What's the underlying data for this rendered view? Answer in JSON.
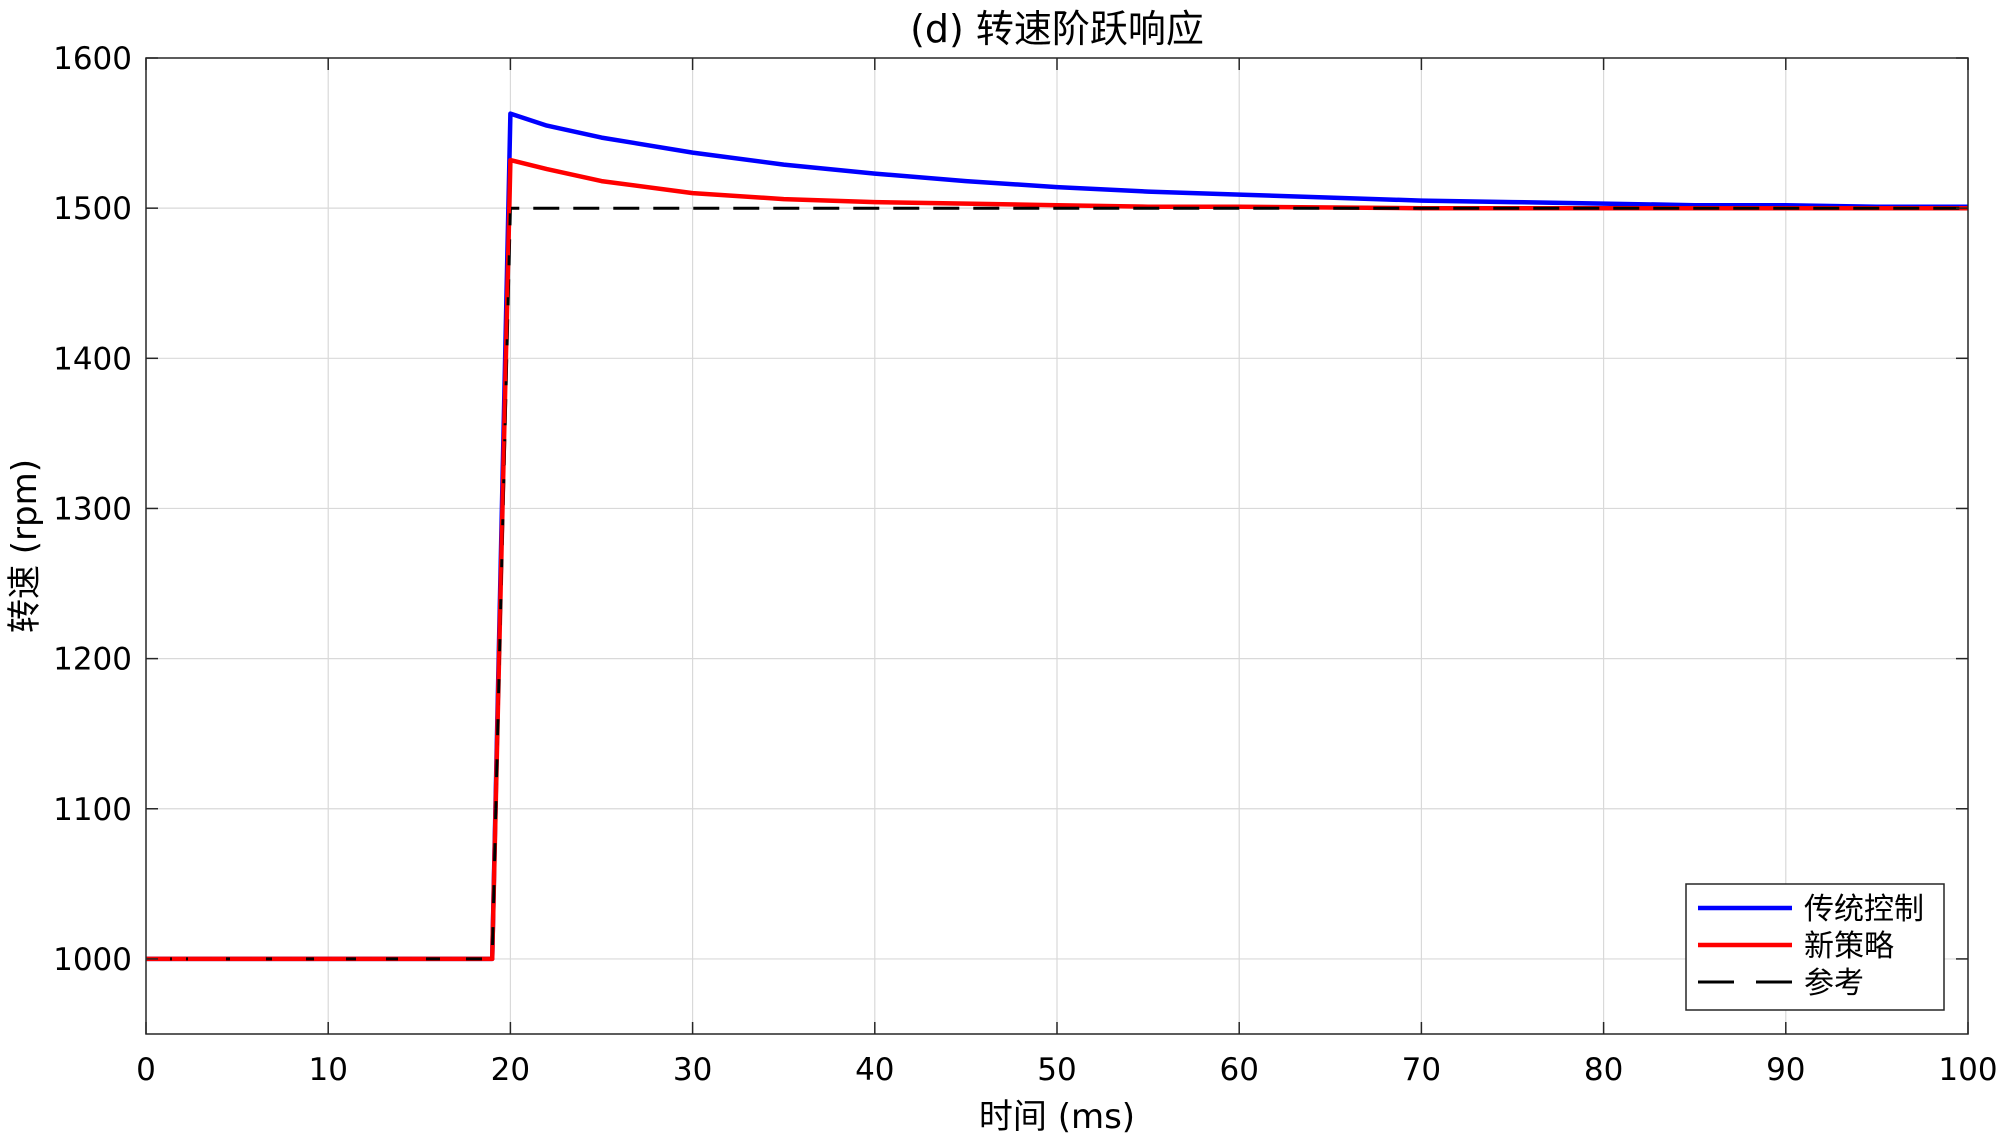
{
  "chart_data": {
    "type": "line",
    "title": "(d) 转速阶跃响应",
    "xlabel": "时间 (ms)",
    "ylabel": "转速 (rpm)",
    "xlim": [
      0,
      100
    ],
    "ylim": [
      950,
      1600
    ],
    "xticks": [
      0,
      10,
      20,
      30,
      40,
      50,
      60,
      70,
      80,
      90,
      100
    ],
    "yticks": [
      1000,
      1100,
      1200,
      1300,
      1400,
      1500,
      1600
    ],
    "grid": true,
    "legend_position": "bottom-right",
    "series": [
      {
        "name": "传统控制",
        "color": "#0000ff",
        "style": "solid",
        "x": [
          0,
          19,
          20,
          22,
          25,
          30,
          35,
          40,
          45,
          50,
          55,
          60,
          65,
          70,
          75,
          80,
          85,
          90,
          95,
          100
        ],
        "y": [
          1000,
          1000,
          1563,
          1555,
          1547,
          1537,
          1529,
          1523,
          1518,
          1514,
          1511,
          1509,
          1507,
          1505,
          1504,
          1503,
          1502,
          1502,
          1501,
          1501
        ]
      },
      {
        "name": "新策略",
        "color": "#ff0000",
        "style": "solid",
        "x": [
          0,
          19,
          20,
          22,
          25,
          30,
          35,
          40,
          45,
          50,
          55,
          60,
          70,
          80,
          90,
          100
        ],
        "y": [
          1000,
          1000,
          1532,
          1526,
          1518,
          1510,
          1506,
          1504,
          1503,
          1502,
          1501,
          1501,
          1500,
          1500,
          1500,
          1500
        ]
      },
      {
        "name": "参考",
        "color": "#000000",
        "style": "dashed",
        "x": [
          0,
          19,
          20,
          100
        ],
        "y": [
          1000,
          1000,
          1500,
          1500
        ]
      }
    ]
  }
}
